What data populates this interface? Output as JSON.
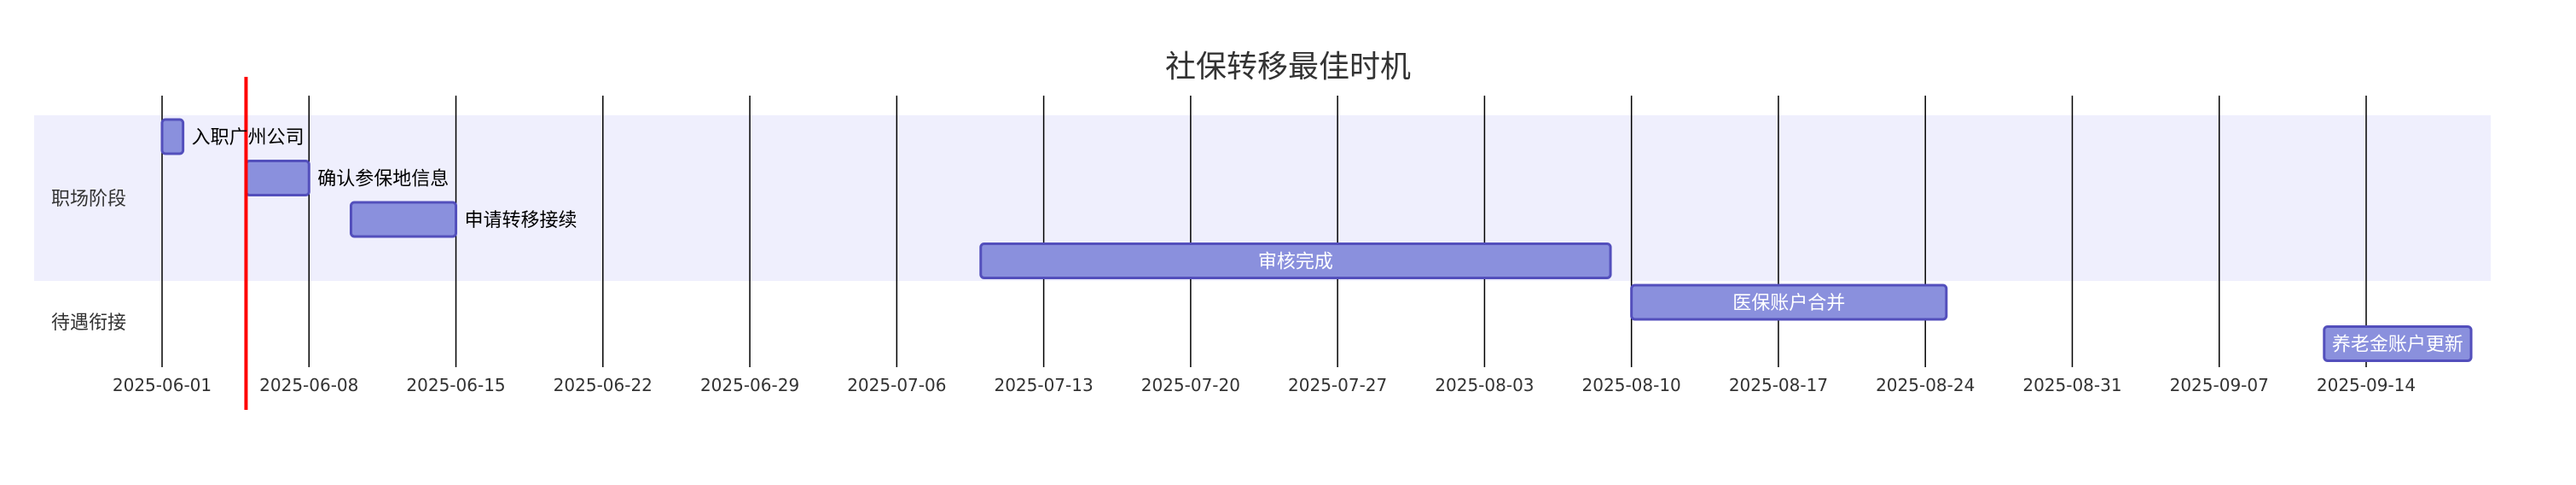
{
  "chart_data": {
    "type": "gantt",
    "title": "社保转移最佳时机",
    "x_axis": {
      "min": "2025-06-01",
      "max": "2025-09-14",
      "ticks": [
        "2025-06-01",
        "2025-06-08",
        "2025-06-15",
        "2025-06-22",
        "2025-06-29",
        "2025-07-06",
        "2025-07-13",
        "2025-07-20",
        "2025-07-27",
        "2025-08-03",
        "2025-08-10",
        "2025-08-17",
        "2025-08-24",
        "2025-08-31",
        "2025-09-07",
        "2025-09-14"
      ]
    },
    "today_marker": "2025-06-05",
    "sections": [
      {
        "name": "职场阶段",
        "band": true
      },
      {
        "name": "待遇衔接",
        "band": false
      }
    ],
    "tasks": [
      {
        "name": "入职广州公司",
        "section": 0,
        "start": "2025-06-01",
        "end": "2025-06-02",
        "label_position": "right"
      },
      {
        "name": "确认参保地信息",
        "section": 0,
        "start": "2025-06-05",
        "end": "2025-06-08",
        "label_position": "right"
      },
      {
        "name": "申请转移接续",
        "section": 0,
        "start": "2025-06-10",
        "end": "2025-06-15",
        "label_position": "right"
      },
      {
        "name": "审核完成",
        "section": 0,
        "start": "2025-07-10",
        "end": "2025-08-09",
        "label_position": "inside"
      },
      {
        "name": "医保账户合并",
        "section": 1,
        "start": "2025-08-10",
        "end": "2025-08-25",
        "label_position": "inside"
      },
      {
        "name": "养老金账户更新",
        "section": 1,
        "start": "2025-09-12",
        "end": "2025-09-19",
        "label_position": "inside"
      }
    ],
    "colors": {
      "band": "#efeffd",
      "bar_fill": "#8a90dd",
      "bar_stroke": "#534fbc",
      "grid": "#000000",
      "today": "#ff0000"
    }
  }
}
